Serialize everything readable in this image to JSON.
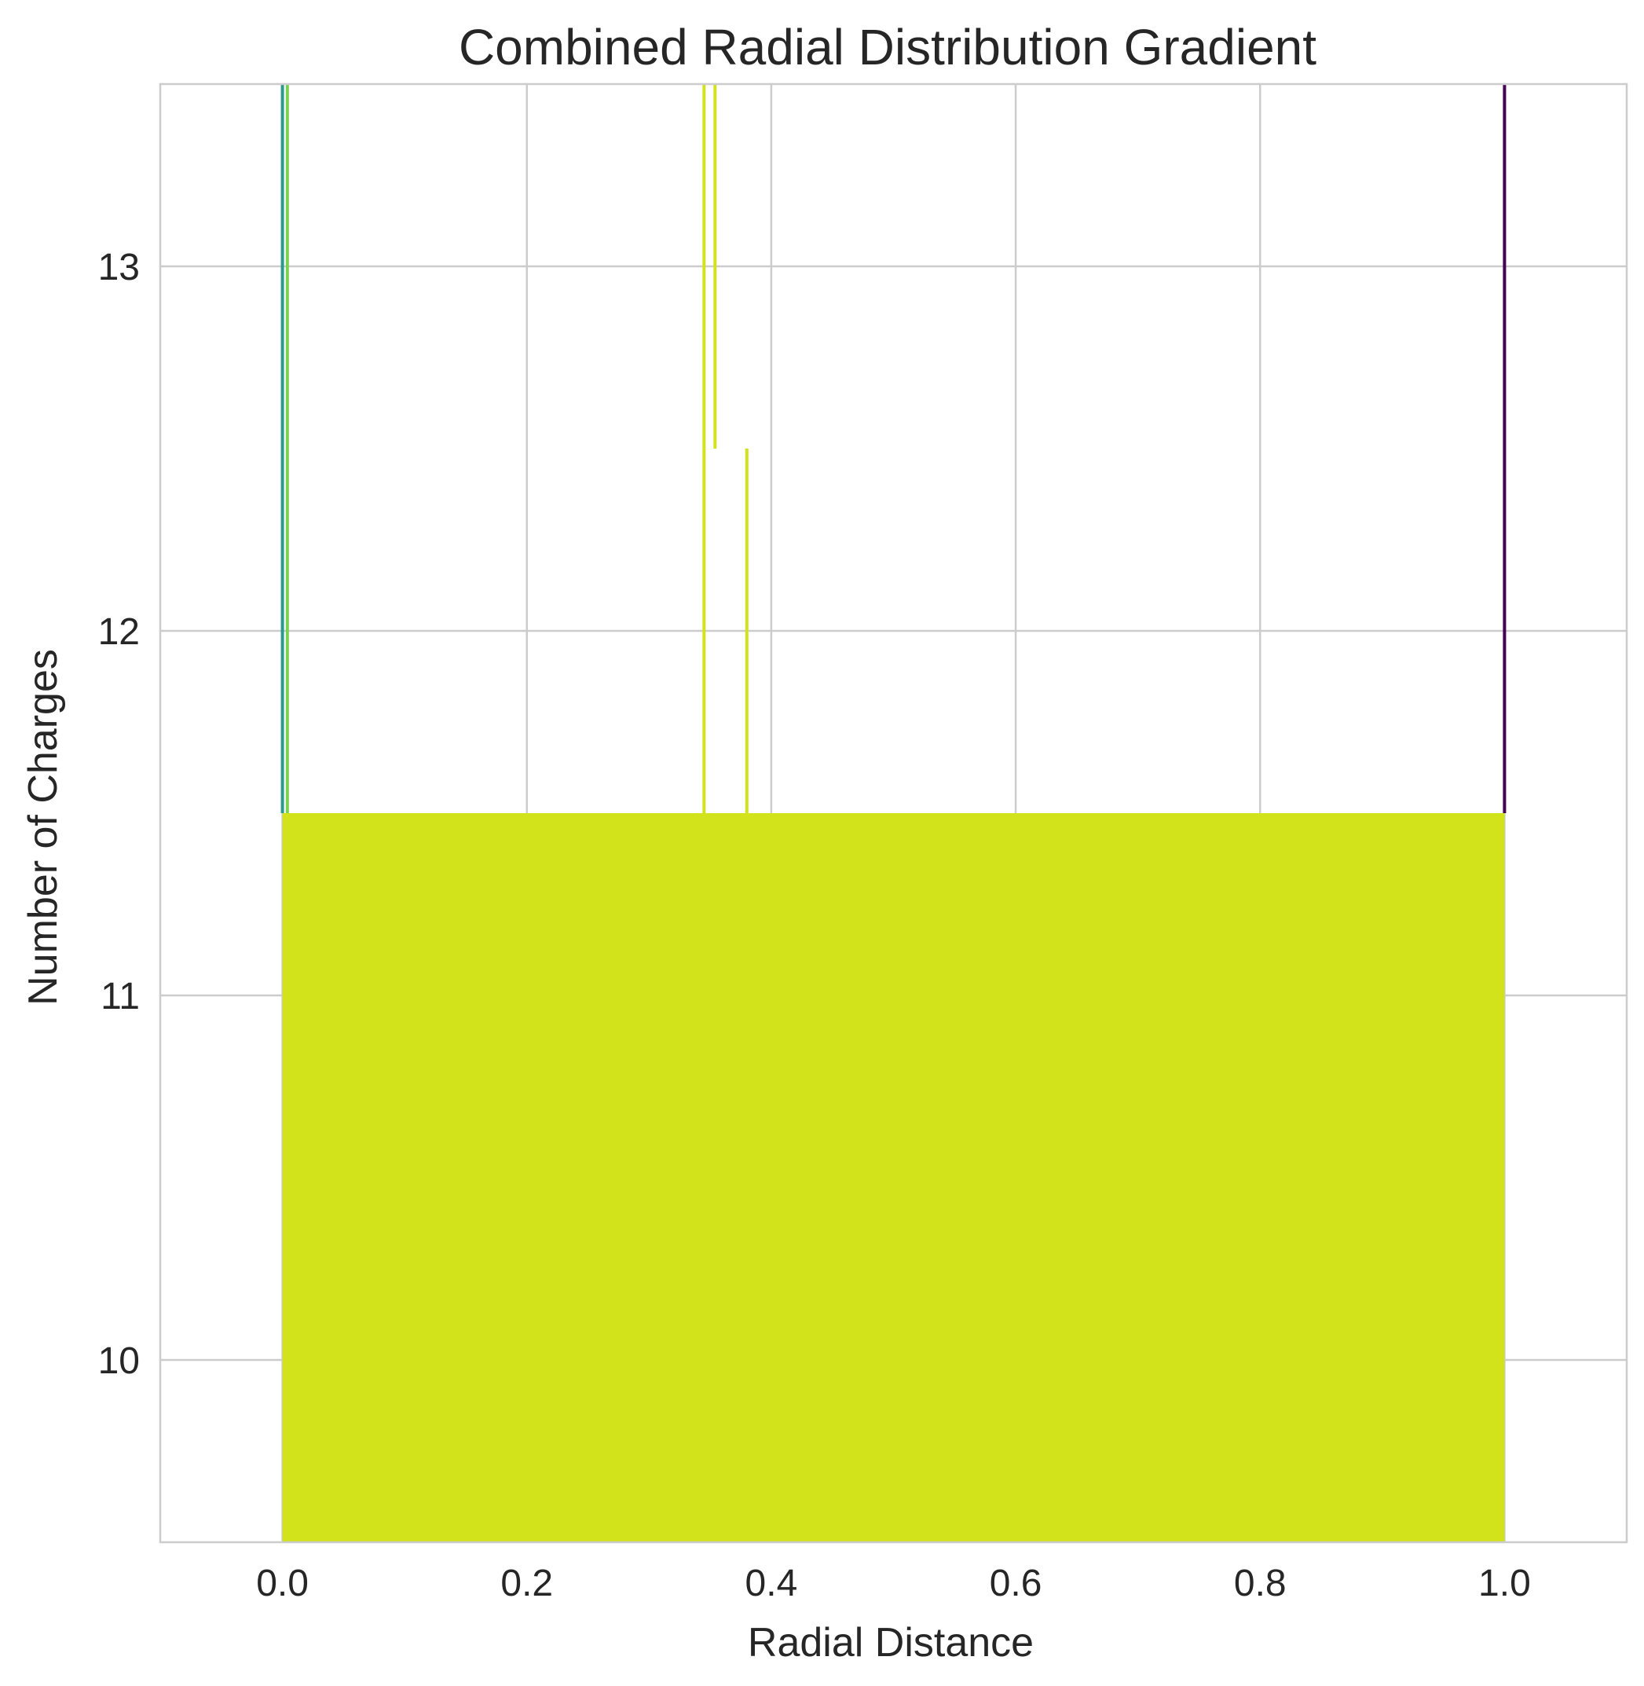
{
  "chart_data": {
    "type": "bar",
    "title": "Combined Radial Distribution Gradient",
    "xlabel": "Radial Distance",
    "ylabel": "Number of Charges",
    "xlim": [
      -0.1,
      1.1
    ],
    "ylim": [
      9.5,
      13.5
    ],
    "x_ticks": [
      0.0,
      0.2,
      0.4,
      0.6,
      0.8,
      1.0
    ],
    "x_tick_labels": [
      "0.0",
      "0.2",
      "0.4",
      "0.6",
      "0.8",
      "1.0"
    ],
    "y_ticks": [
      10,
      11,
      12,
      13
    ],
    "y_tick_labels": [
      "10",
      "11",
      "12",
      "13"
    ],
    "grid": true,
    "bars": [
      {
        "x_start": 0.0,
        "x_end": 1.0,
        "value": 11.5,
        "color": "#d2e21b"
      }
    ],
    "spikes": [
      {
        "x": 0.0,
        "from": 11.5,
        "to": 13.5,
        "color": "#2a9a8a"
      },
      {
        "x": 0.004,
        "from": 11.5,
        "to": 13.5,
        "color": "#7ad151"
      },
      {
        "x": 0.345,
        "from": 11.5,
        "to": 12.5,
        "color": "#d2e21b"
      },
      {
        "x": 0.345,
        "from": 12.5,
        "to": 13.5,
        "color": "#d2e21b"
      },
      {
        "x": 0.354,
        "from": 12.5,
        "to": 13.5,
        "color": "#d2e21b"
      },
      {
        "x": 0.38,
        "from": 11.5,
        "to": 12.5,
        "color": "#d2e21b"
      },
      {
        "x": 1.0,
        "from": 11.5,
        "to": 13.5,
        "color": "#440154"
      }
    ],
    "colors": {
      "fill": "#d2e21b",
      "grid": "#cccccc",
      "text": "#262626"
    }
  }
}
